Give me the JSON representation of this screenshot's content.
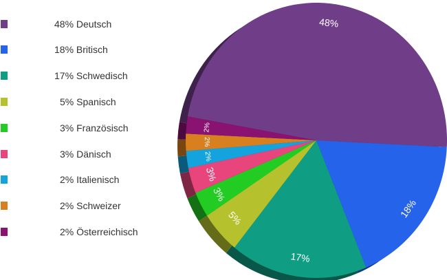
{
  "chart_data": {
    "type": "pie",
    "title": "",
    "slices": [
      {
        "label": "48% Deutsch",
        "value": 48,
        "slice_label": "48%",
        "color": "#703d88"
      },
      {
        "label": "18% Britisch",
        "value": 18,
        "slice_label": "18%",
        "color": "#2563eb"
      },
      {
        "label": "17% Schwedisch",
        "value": 17,
        "slice_label": "17%",
        "color": "#0f9e83"
      },
      {
        "label": "5% Spanisch",
        "value": 5,
        "slice_label": "5%",
        "color": "#b5c22d"
      },
      {
        "label": "3% Französisch",
        "value": 3,
        "slice_label": "3%",
        "color": "#22cc22"
      },
      {
        "label": "3% Dänisch",
        "value": 3,
        "slice_label": "3%",
        "color": "#e8457d"
      },
      {
        "label": "2% Italienisch",
        "value": 2,
        "slice_label": "2%",
        "color": "#14a3dc"
      },
      {
        "label": "2% Schweizer",
        "value": 2,
        "slice_label": "2%",
        "color": "#d8801f"
      },
      {
        "label": "2% Österreichisch",
        "value": 2,
        "slice_label": "2%",
        "color": "#8a1270"
      }
    ],
    "legend_position": "left"
  }
}
